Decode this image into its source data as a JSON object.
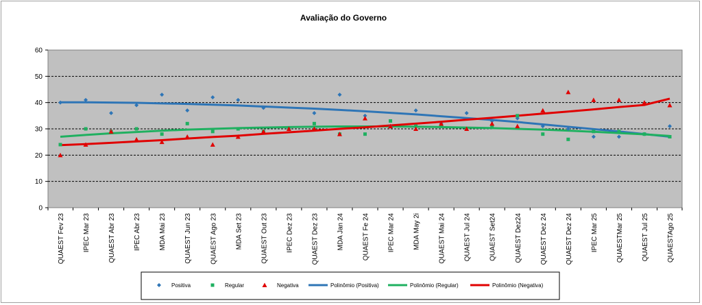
{
  "chart_data": {
    "type": "scatter",
    "title": "Avaliação do Governo",
    "xlabel": "",
    "ylabel": "",
    "ylim": [
      0,
      60
    ],
    "yticks": [
      "0",
      "10",
      "20",
      "30",
      "40",
      "50",
      "60"
    ],
    "grid": "horizontal dashed",
    "legend_position": "bottom",
    "background": "#c0c0c0",
    "categories": [
      "QUAEST Fev 23",
      "IPEC Mar 23",
      "QUAEST Abr 23",
      "IPEC Abr 23",
      "MDA Mai 23",
      "QUAEST Jun 23",
      "QUAEST Ago 23",
      "MDA Set 23",
      "QUAEST Out 23",
      "IPEC Dez 23",
      "QUAEST Dez 23",
      "MDA Jan 24",
      "QUAEST Fe 24",
      "IPEC Mar 24",
      "MDA May 2i",
      "QUAEST Mai 24",
      "QUAEST Jul 24",
      "QUAEST Set24",
      "QUAEST Dez24",
      "QUAEST Dez 24",
      "QUAEST Dez 24",
      "IPEC Mar 25",
      "QUAESTMar 25",
      "QUAEST Jul 25",
      "QUAESTAgo 25"
    ],
    "series": [
      {
        "name": "Positiva",
        "marker": "diamond",
        "color": "#2e75b6",
        "values": [
          40,
          41,
          36,
          39,
          43,
          37,
          42,
          41,
          38,
          30,
          36,
          43,
          35,
          31,
          37,
          32,
          36,
          33,
          34,
          31,
          30,
          27,
          27,
          28,
          31
        ]
      },
      {
        "name": "Regular",
        "marker": "square",
        "color": "#1fb060",
        "values": [
          24,
          30,
          29,
          30,
          28,
          32,
          29,
          30,
          29,
          30,
          32,
          28,
          28,
          33,
          31,
          31,
          30,
          31,
          35,
          28,
          26,
          29,
          29,
          28,
          27
        ]
      },
      {
        "name": "Negativa",
        "marker": "triangle",
        "color": "#e00000",
        "values": [
          20,
          24,
          29,
          26,
          25,
          27,
          24,
          27,
          29,
          30,
          30,
          28,
          34,
          31,
          30,
          32,
          30,
          32,
          31,
          37,
          44,
          41,
          41,
          40,
          39
        ]
      },
      {
        "name": "Polinômio (Positiva)",
        "type": "trend",
        "color": "#2e75b6",
        "values": [
          40.1,
          40.1,
          40.0,
          39.9,
          39.7,
          39.5,
          39.2,
          38.9,
          38.5,
          38.1,
          37.7,
          37.2,
          36.7,
          36.1,
          35.5,
          34.8,
          34.1,
          33.4,
          32.6,
          31.7,
          30.8,
          29.9,
          29.0,
          28.0,
          27.0
        ]
      },
      {
        "name": "Polinômio (Regular)",
        "type": "trend",
        "color": "#1fb060",
        "values": [
          27.0,
          27.7,
          28.3,
          28.8,
          29.3,
          29.7,
          30.0,
          30.3,
          30.5,
          30.7,
          30.8,
          30.9,
          30.9,
          30.9,
          30.8,
          30.7,
          30.5,
          30.3,
          30.0,
          29.7,
          29.3,
          28.9,
          28.4,
          27.9,
          27.3
        ]
      },
      {
        "name": "Polinômio (Negativa)",
        "type": "trend",
        "color": "#e00000",
        "values": [
          23.8,
          24.2,
          24.7,
          25.2,
          25.7,
          26.3,
          26.9,
          27.4,
          28.1,
          28.7,
          29.3,
          30.0,
          30.6,
          31.3,
          32.0,
          32.7,
          33.5,
          34.2,
          35.0,
          35.8,
          36.6,
          37.4,
          38.3,
          39.1,
          41.5
        ]
      }
    ]
  }
}
